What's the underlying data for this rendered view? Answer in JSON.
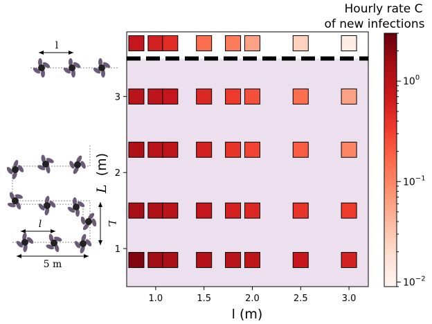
{
  "chart_data": {
    "type": "heatmap",
    "title": "",
    "xlabel": "l (m)",
    "ylabel_main": "L",
    "ylabel_unit": "(m)",
    "xlim": [
      0.7,
      3.2
    ],
    "ylim": [
      0.5,
      3.85
    ],
    "xticks": [
      1.0,
      1.5,
      2.0,
      2.5,
      3.0
    ],
    "xtick_labels": [
      "1.0",
      "1.5",
      "2.0",
      "2.5",
      "3.0"
    ],
    "yticks": [
      1,
      2,
      3
    ],
    "ytick_labels": [
      "1",
      "2",
      "3"
    ],
    "x": [
      0.8,
      1.0,
      1.15,
      1.5,
      1.8,
      2.0,
      2.5,
      3.0
    ],
    "rows": [
      {
        "y": 0.85,
        "values": [
          2.2,
          1.5,
          1.3,
          1.1,
          1.0,
          0.9,
          0.75,
          0.6
        ]
      },
      {
        "y": 1.5,
        "values": [
          1.4,
          1.2,
          1.0,
          0.8,
          0.6,
          0.5,
          0.4,
          0.35
        ]
      },
      {
        "y": 2.3,
        "values": [
          1.2,
          1.0,
          0.9,
          0.6,
          0.4,
          0.3,
          0.2,
          0.1
        ]
      },
      {
        "y": 3.0,
        "values": [
          1.0,
          0.9,
          0.8,
          0.5,
          0.35,
          0.25,
          0.15,
          0.06
        ]
      },
      {
        "y": 3.7,
        "values": [
          0.8,
          0.6,
          0.45,
          0.15,
          0.12,
          0.06,
          0.025,
          0.012
        ]
      }
    ],
    "separator_y": 3.5,
    "shaded_region_color": "#ece0ee",
    "colorscale": "Reds",
    "log_scale": true,
    "colorbar": {
      "title_line1": "Hourly rate C",
      "title_line2": "of new infections",
      "min": 0.009,
      "max": 3.0,
      "ticks": [
        0.01,
        0.1,
        1
      ],
      "tick_base": "10",
      "tick_exps": [
        "−2",
        "−1",
        "0"
      ]
    }
  },
  "inset": {
    "top_label": "l",
    "grid_small_label": "l",
    "grid_wide_label": "5 m",
    "grid_vertical_label": "L"
  }
}
